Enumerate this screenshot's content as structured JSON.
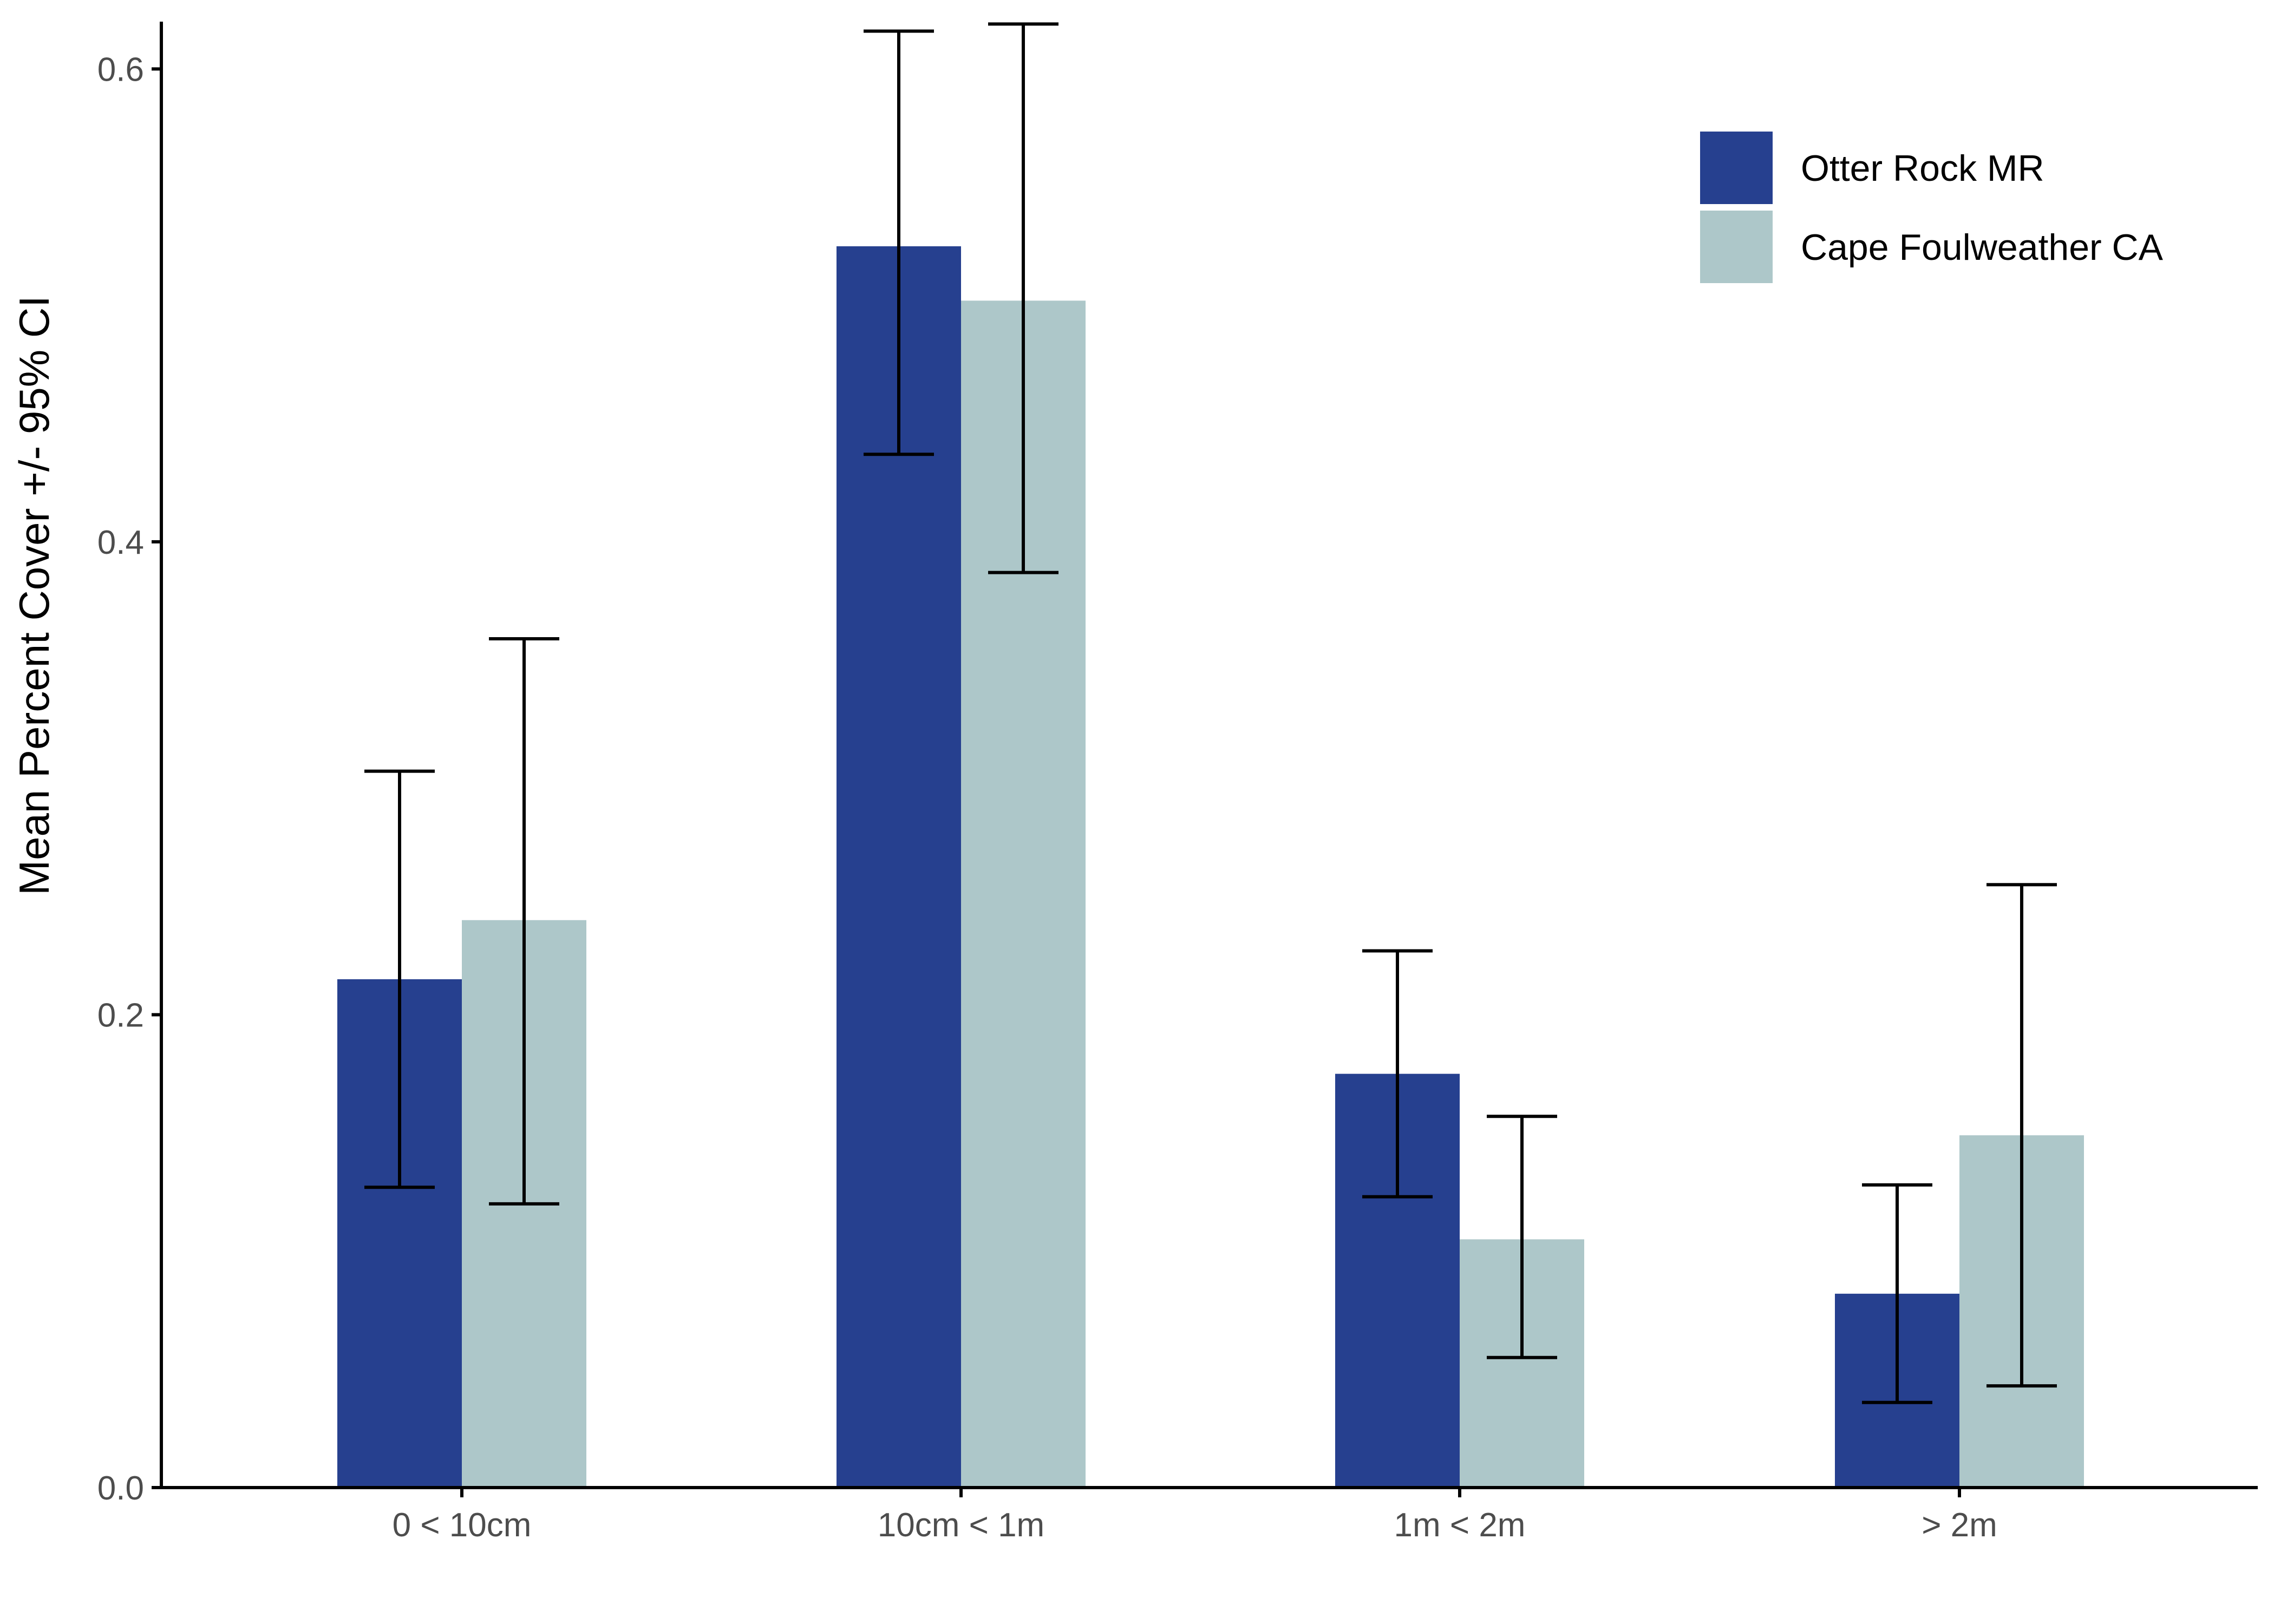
{
  "colors": {
    "series_1": "#26408F",
    "series_2": "#ADC7C9",
    "axis": "#000000",
    "tick_text": "#4d4d4d",
    "error_bar": "#000000",
    "background": "#ffffff"
  },
  "chart_data": {
    "type": "bar",
    "title": "",
    "xlabel": "",
    "ylabel": "Mean Percent Cover +/- 95% CI",
    "ylim": [
      0,
      0.62
    ],
    "yticks": [
      0.0,
      0.2,
      0.4,
      0.6
    ],
    "ytick_labels": [
      "0.0",
      "0.2",
      "0.4",
      "0.6"
    ],
    "grid": false,
    "legend_position": "top-right",
    "categories": [
      "0 < 10cm",
      "10cm < 1m",
      "1m < 2m",
      "> 2m"
    ],
    "series": [
      {
        "name": "Otter Rock MR",
        "values": [
          0.215,
          0.525,
          0.175,
          0.082
        ],
        "ci_low": [
          0.127,
          0.437,
          0.123,
          0.036
        ],
        "ci_high": [
          0.303,
          0.616,
          0.227,
          0.128
        ]
      },
      {
        "name": "Cape Foulweather CA",
        "values": [
          0.24,
          0.502,
          0.105,
          0.149
        ],
        "ci_low": [
          0.12,
          0.387,
          0.055,
          0.043
        ],
        "ci_high": [
          0.359,
          0.619,
          0.157,
          0.255
        ]
      }
    ]
  }
}
